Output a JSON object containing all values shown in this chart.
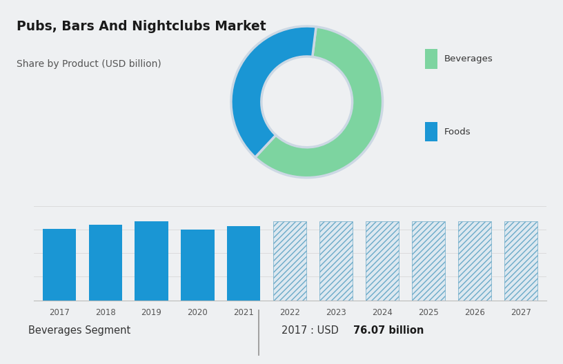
{
  "title": "Pubs, Bars And Nightclubs Market",
  "subtitle": "Share by Product (USD billion)",
  "bg_top": "#ccd8e4",
  "bg_bottom": "#eef0f2",
  "donut_colors": [
    "#7dd4a0",
    "#1a96d4"
  ],
  "donut_labels": [
    "Beverages",
    "Foods"
  ],
  "donut_values": [
    60,
    40
  ],
  "donut_startangle": 83,
  "legend_labels": [
    "Beverages",
    "Foods"
  ],
  "legend_colors": [
    "#7dd4a0",
    "#1a96d4"
  ],
  "bar_years_solid": [
    2017,
    2018,
    2019,
    2020,
    2021
  ],
  "bar_values_solid": [
    76,
    80,
    84,
    75,
    79
  ],
  "bar_years_hatch": [
    2022,
    2023,
    2024,
    2025,
    2026,
    2027
  ],
  "bar_value_hatch_uniform": 84,
  "bar_color_solid": "#1a96d4",
  "bar_hatch_facecolor": "#dde8f0",
  "bar_hatch_edgecolor": "#6aaac8",
  "footer_left": "Beverages Segment",
  "footer_right_normal": "2017 : USD ",
  "footer_right_bold": "76.07 billion",
  "footer_divider": "|",
  "grid_color": "#d8d8d8",
  "spine_color": "#bbbbbb"
}
